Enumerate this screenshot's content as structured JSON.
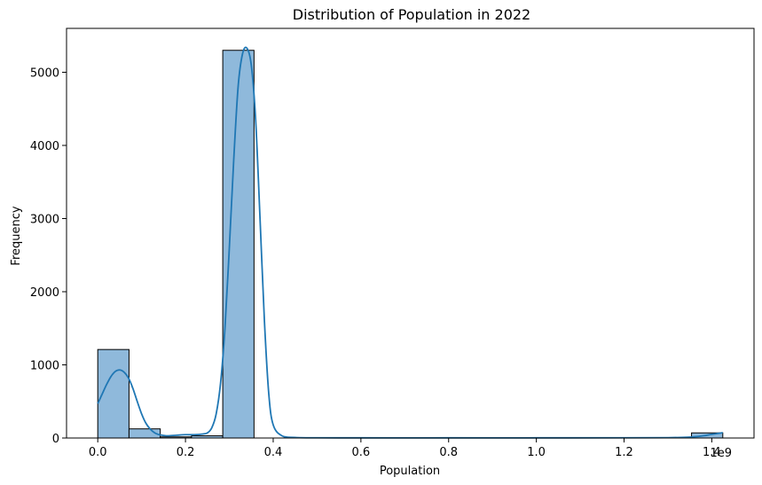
{
  "chart_data": {
    "type": "bar",
    "subtype": "histogram-with-kde",
    "title": "Distribution of Population in 2022",
    "xlabel": "Population",
    "ylabel": "Frequency",
    "x_offset_text": "1e9",
    "x_scale": 1000000000,
    "xlim": [
      -0.0712,
      1.4963
    ],
    "ylim": [
      0,
      5600
    ],
    "x_ticks": [
      0.0,
      0.2,
      0.4,
      0.6,
      0.8,
      1.0,
      1.2,
      1.4
    ],
    "x_tick_labels": [
      "0.0",
      "0.2",
      "0.4",
      "0.6",
      "0.8",
      "1.0",
      "1.2",
      "1.4"
    ],
    "y_ticks": [
      0,
      1000,
      2000,
      3000,
      4000,
      5000
    ],
    "y_tick_labels": [
      "0",
      "1000",
      "2000",
      "3000",
      "4000",
      "5000"
    ],
    "bins": {
      "start": 0.0,
      "end": 1.4251,
      "count": 20
    },
    "values": [
      1210,
      125,
      15,
      30,
      5300,
      0,
      0,
      0,
      0,
      0,
      0,
      0,
      0,
      0,
      0,
      0,
      0,
      0,
      0,
      70
    ],
    "kde": {
      "x": [
        0.0,
        0.01,
        0.02,
        0.03,
        0.04,
        0.05,
        0.06,
        0.07,
        0.08,
        0.09,
        0.1,
        0.11,
        0.12,
        0.13,
        0.14,
        0.15,
        0.16,
        0.18,
        0.2,
        0.22,
        0.24,
        0.25,
        0.26,
        0.27,
        0.28,
        0.29,
        0.3,
        0.31,
        0.32,
        0.33,
        0.34,
        0.35,
        0.36,
        0.37,
        0.38,
        0.39,
        0.4,
        0.42,
        0.45,
        0.5,
        0.6,
        0.8,
        1.0,
        1.2,
        1.3,
        1.35,
        1.38,
        1.4,
        1.425
      ],
      "y": [
        470,
        600,
        730,
        840,
        910,
        930,
        900,
        820,
        680,
        500,
        330,
        200,
        120,
        70,
        45,
        35,
        30,
        38,
        45,
        45,
        55,
        70,
        140,
        330,
        750,
        1500,
        2600,
        3800,
        4800,
        5250,
        5330,
        5100,
        4350,
        3000,
        1600,
        600,
        180,
        30,
        8,
        3,
        2,
        2,
        2,
        3,
        5,
        12,
        30,
        50,
        72
      ]
    },
    "legend": "none",
    "grid": false,
    "colors": {
      "bar_fill": "#8fb9db",
      "bar_edge": "#000000",
      "kde_line": "#1f77b4",
      "axes": "#000000"
    }
  }
}
